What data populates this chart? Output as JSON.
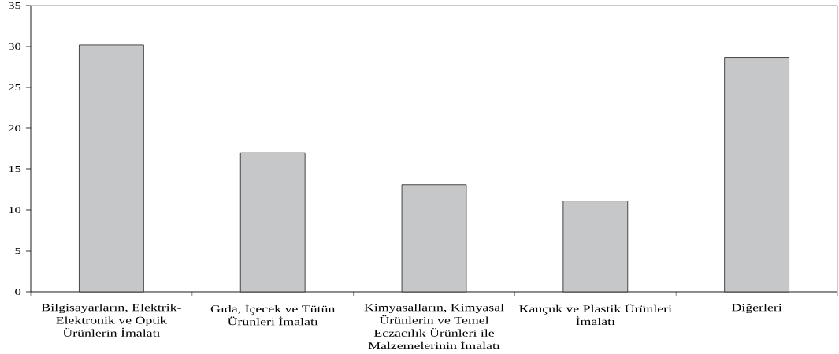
{
  "chart_data": {
    "type": "bar",
    "categories": [
      "Bilgisayarların, Elektrik-Elektronik ve Optik Ürünlerin İmalatı",
      "Gıda, İçecek ve Tütün Ürünleri İmalatı",
      "Kimyasalların, Kimyasal Ürünlerin ve Temel Eczacılık Ürünleri ile Malzemelerinin İmalatı",
      "Kauçuk ve Plastik Ürünleri İmalatı",
      "Diğerleri"
    ],
    "values": [
      30.2,
      17.0,
      13.1,
      11.1,
      28.6
    ],
    "color": "#c6c7c9",
    "ylim": [
      0,
      35
    ],
    "yticks": [
      0,
      5,
      10,
      15,
      20,
      25,
      30,
      35
    ]
  }
}
